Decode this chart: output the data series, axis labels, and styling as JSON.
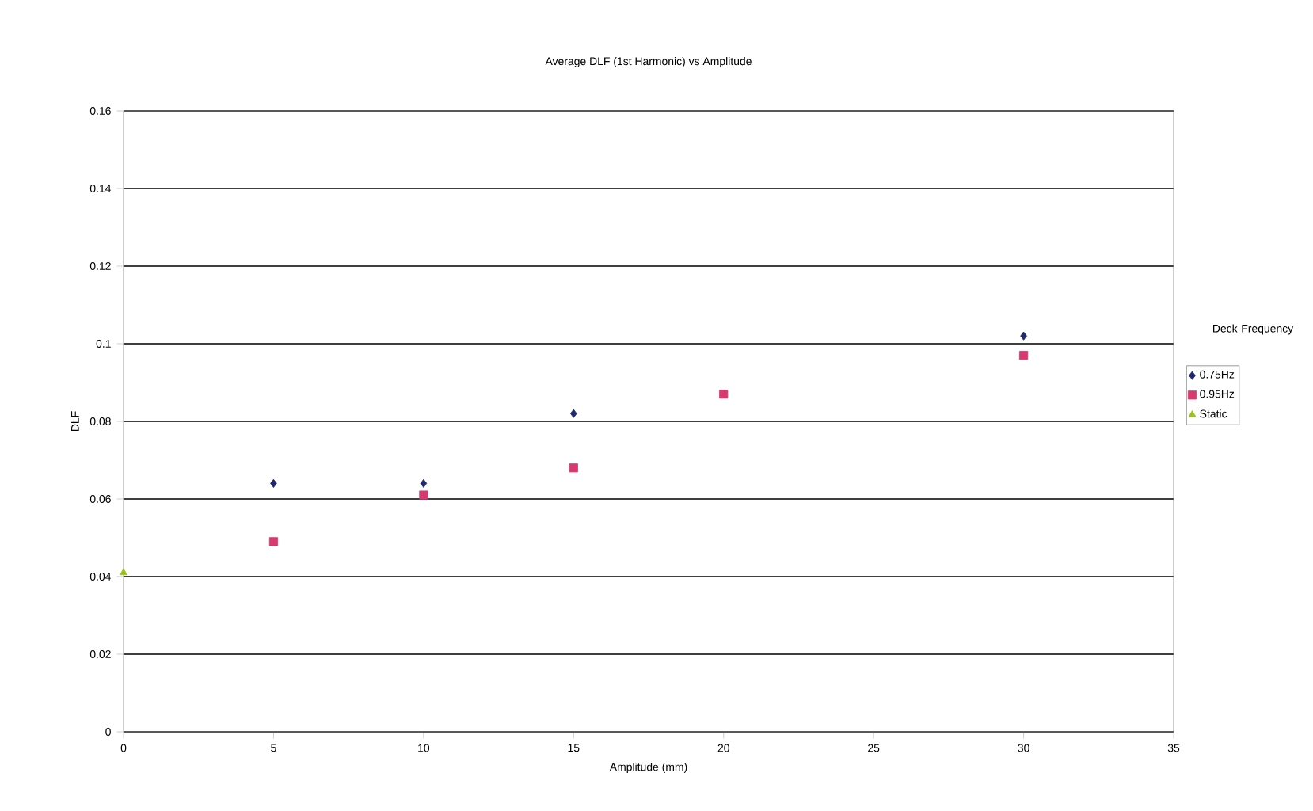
{
  "chart_data": {
    "type": "scatter",
    "title": "Average DLF (1st Harmonic) vs Amplitude",
    "xlabel": "Amplitude (mm)",
    "ylabel": "DLF",
    "legend_title": "Deck Frequency",
    "xlim": [
      0,
      35
    ],
    "xticks": [
      0,
      5,
      10,
      15,
      20,
      25,
      30,
      35
    ],
    "ylim": [
      0,
      0.16
    ],
    "yticks": [
      0,
      0.02,
      0.04,
      0.06,
      0.08,
      0.1,
      0.12,
      0.14,
      0.16
    ],
    "grid": "y",
    "legend": "right",
    "series": [
      {
        "name": "0.75Hz",
        "color": "#1f2a6e",
        "marker": "diamond",
        "x": [
          5,
          10,
          15,
          30
        ],
        "values": [
          0.064,
          0.064,
          0.082,
          0.102
        ]
      },
      {
        "name": "0.95Hz",
        "color": "#d63a6e",
        "marker": "square",
        "x": [
          5,
          10,
          15,
          20,
          30
        ],
        "values": [
          0.049,
          0.061,
          0.068,
          0.087,
          0.097
        ]
      },
      {
        "name": "Static",
        "color": "#99c21a",
        "marker": "triangle",
        "x": [
          0
        ],
        "values": [
          0.041
        ]
      }
    ]
  }
}
